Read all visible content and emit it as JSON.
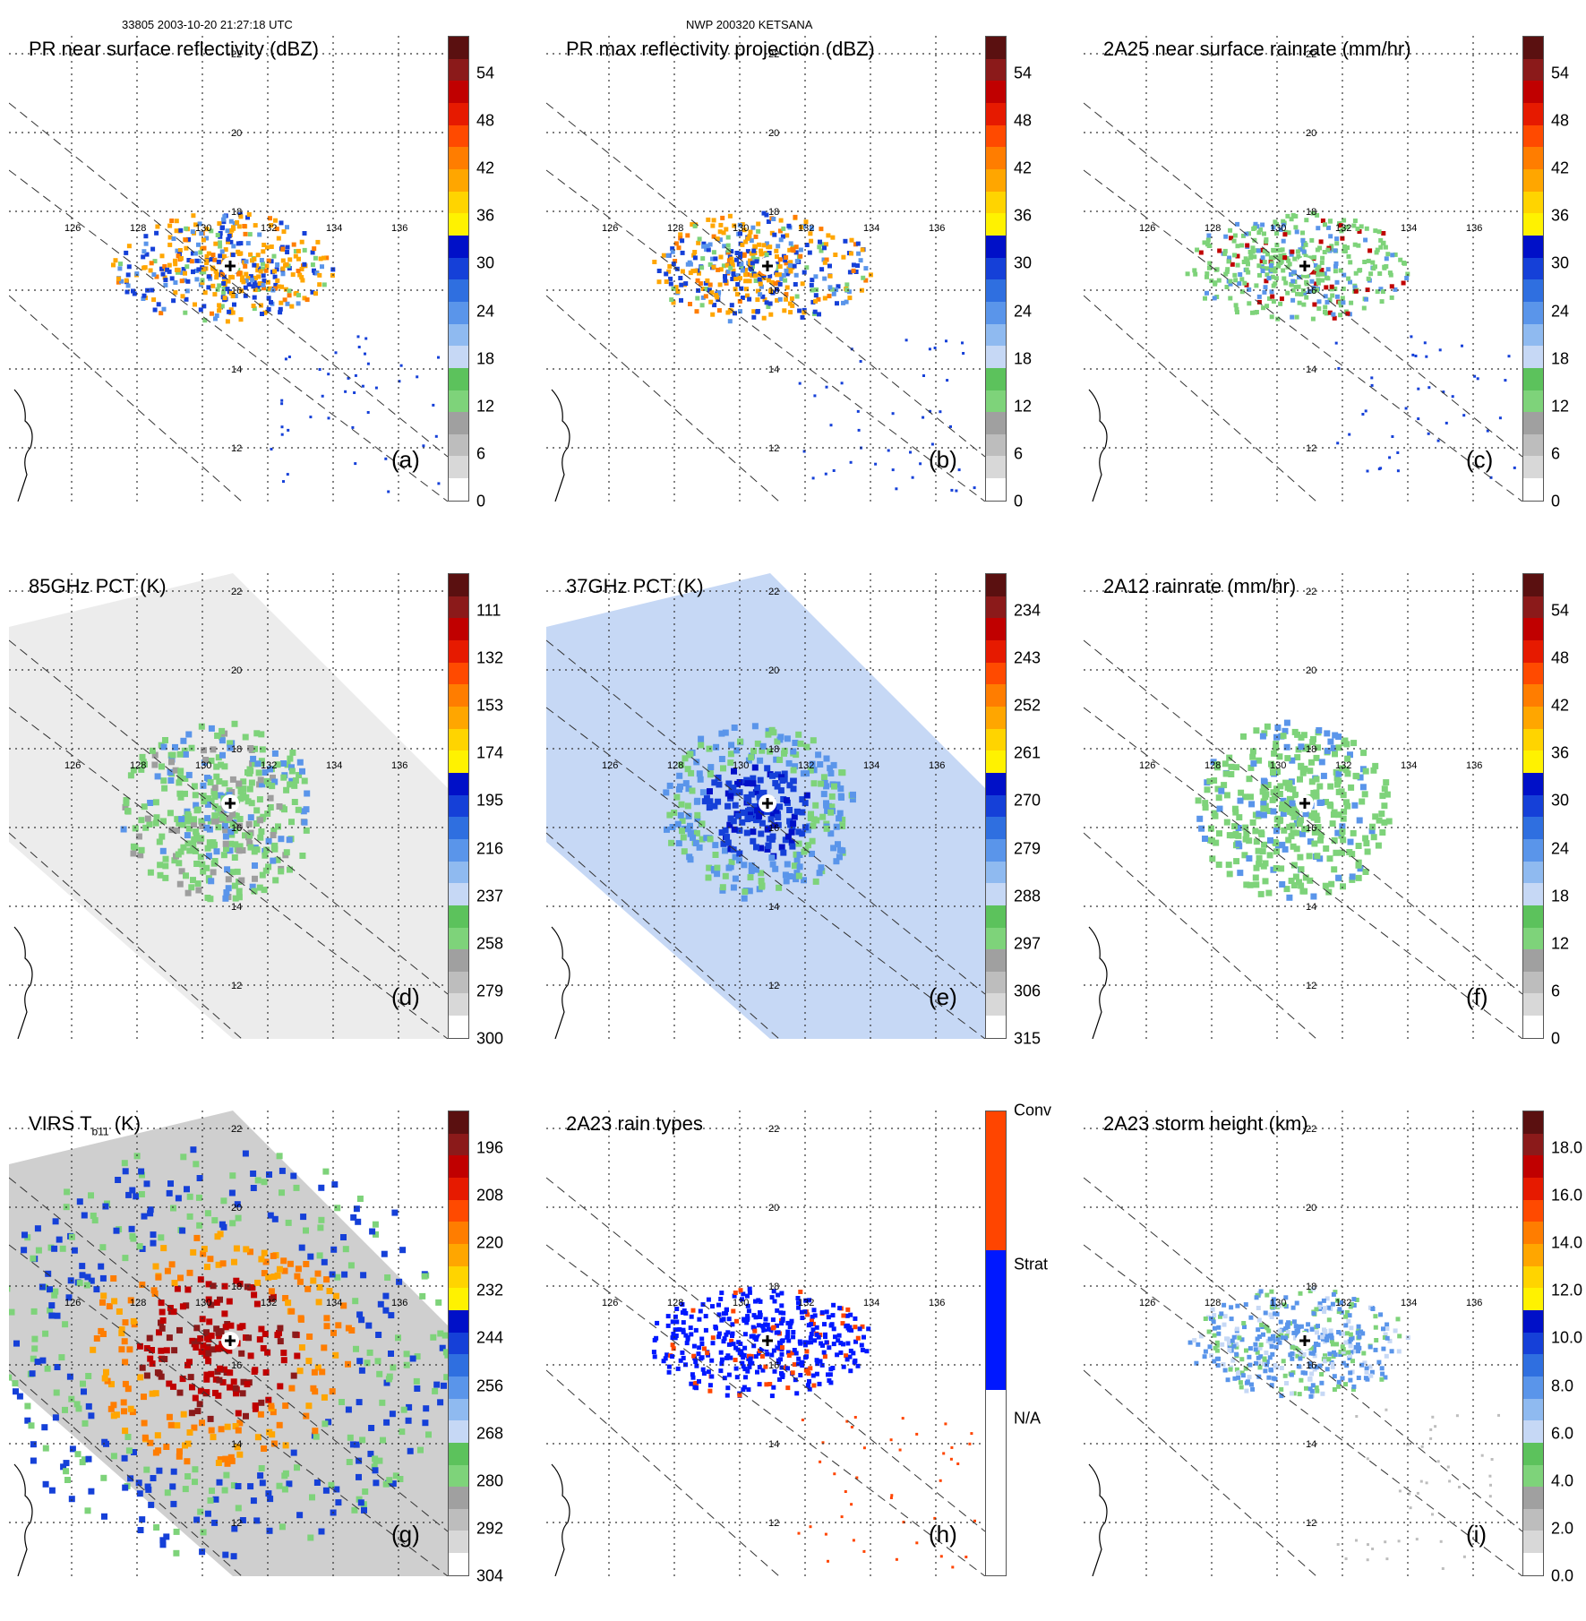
{
  "header": {
    "orbit_time": "33805 2003-10-20 21:27:18 UTC",
    "storm": "NWP 200320 KETSANA"
  },
  "grid_labels": {
    "lon": [
      "126",
      "128",
      "130",
      "132",
      "134",
      "136"
    ],
    "lat": [
      "22",
      "20",
      "18",
      "16",
      "14",
      "12"
    ]
  },
  "colors": {
    "rain_scale": [
      "#ffffff",
      "#d8d8d8",
      "#bdbdbd",
      "#a0a0a0",
      "#7ed37a",
      "#5cc25c",
      "#c6d8f5",
      "#8fbaf0",
      "#5a95ea",
      "#2f6fe0",
      "#1540d8",
      "#0010c8",
      "#fff200",
      "#ffd400",
      "#ffa600",
      "#ff7d00",
      "#ff4a00",
      "#e61a00",
      "#c00000",
      "#8b1a1a",
      "#5a1010"
    ],
    "rain_type": {
      "conv": "#ff4500",
      "strat": "#0018ff",
      "na": "#ffffff"
    }
  },
  "panels": [
    {
      "title": "PR near surface reflectivity (dBZ)",
      "label": "(a)",
      "ticks": [
        "54",
        "48",
        "42",
        "36",
        "30",
        "24",
        "18",
        "12",
        "6",
        "0"
      ]
    },
    {
      "title": "PR max reflectivity projection (dBZ)",
      "label": "(b)",
      "ticks": [
        "54",
        "48",
        "42",
        "36",
        "30",
        "24",
        "18",
        "12",
        "6",
        "0"
      ]
    },
    {
      "title": "2A25 near surface rainrate (mm/hr)",
      "label": "(c)",
      "ticks": [
        "54",
        "48",
        "42",
        "36",
        "30",
        "24",
        "18",
        "12",
        "6",
        "0"
      ]
    },
    {
      "title": "85GHz PCT (K)",
      "label": "(d)",
      "ticks": [
        "111",
        "132",
        "153",
        "174",
        "195",
        "216",
        "237",
        "258",
        "279",
        "300"
      ]
    },
    {
      "title": "37GHz PCT (K)",
      "label": "(e)",
      "ticks": [
        "234",
        "243",
        "252",
        "261",
        "270",
        "279",
        "288",
        "297",
        "306",
        "315"
      ]
    },
    {
      "title": "2A12 rainrate (mm/hr)",
      "label": "(f)",
      "ticks": [
        "54",
        "48",
        "42",
        "36",
        "30",
        "24",
        "18",
        "12",
        "6",
        "0"
      ]
    },
    {
      "title": "VIRS T",
      "label": "(g)",
      "ticks": [
        "196",
        "208",
        "220",
        "232",
        "244",
        "256",
        "268",
        "280",
        "292",
        "304"
      ]
    },
    {
      "title": "2A23 rain types",
      "label": "(h)",
      "ticks": [
        "Conv",
        "Strat",
        "N/A"
      ]
    },
    {
      "title": "2A23 storm height (km)",
      "label": "(i)",
      "ticks": [
        "18.0",
        "16.0",
        "14.0",
        "12.0",
        "10.0",
        "8.0",
        "6.0",
        "4.0",
        "2.0",
        "0.0"
      ]
    }
  ],
  "virs_title_suffix": "(K)",
  "virs_subscript": "b11"
}
